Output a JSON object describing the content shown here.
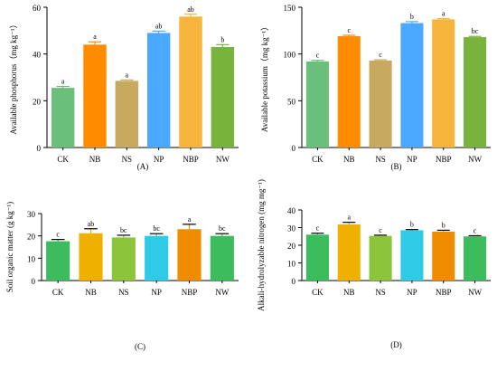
{
  "chart_data": [
    {
      "type": "bar",
      "panel_label": "(A)",
      "categories": [
        "CK",
        "NB",
        "NS",
        "NP",
        "NBP",
        "NW"
      ],
      "values": [
        25.5,
        44.0,
        28.5,
        49.0,
        56.0,
        43.0
      ],
      "errors": [
        0.6,
        1.2,
        0.4,
        0.8,
        1.0,
        1.0
      ],
      "letters": [
        "a",
        "a",
        "a",
        "ab",
        "ab",
        "b"
      ],
      "colors": [
        "#6abf7b",
        "#ff8c00",
        "#c8a960",
        "#4aa8ff",
        "#f5b43c",
        "#78b43c"
      ],
      "ylabel": "Available phosphorus（mg kg⁻¹）",
      "ylim": [
        0,
        60
      ],
      "yticks": [
        0,
        20,
        40,
        60
      ]
    },
    {
      "type": "bar",
      "panel_label": "(B)",
      "categories": [
        "CK",
        "NB",
        "NS",
        "NP",
        "NBP",
        "NW"
      ],
      "values": [
        92,
        119,
        93,
        133,
        137,
        118
      ],
      "errors": [
        1.2,
        1.0,
        0.8,
        1.6,
        0.8,
        0.8
      ],
      "letters": [
        "c",
        "c",
        "c",
        "b",
        "a",
        "bc"
      ],
      "colors": [
        "#6abf7b",
        "#ff8c00",
        "#c8a960",
        "#4aa8ff",
        "#f5b43c",
        "#78b43c"
      ],
      "ylabel": "Available potassium（mg kg⁻¹）",
      "ylim": [
        0,
        150
      ],
      "yticks": [
        0,
        50,
        100,
        150
      ]
    },
    {
      "type": "bar",
      "panel_label": "(C)",
      "categories": [
        "CK",
        "NB",
        "NS",
        "NP",
        "NBP",
        "NW"
      ],
      "values": [
        17.6,
        21.2,
        19.3,
        20.0,
        23.0,
        20.0
      ],
      "errors": [
        0.8,
        2.0,
        1.0,
        1.0,
        2.2,
        1.0
      ],
      "letters": [
        "c",
        "ab",
        "bc",
        "bc",
        "a",
        "bc"
      ],
      "colors": [
        "#3cbc5c",
        "#f0b000",
        "#8cc43c",
        "#2ecae6",
        "#f08c00",
        "#3cbc5c"
      ],
      "ylabel": "Soil organic matter (g kg⁻¹)",
      "ylim": [
        0,
        30
      ],
      "yticks": [
        0,
        10,
        20,
        30
      ]
    },
    {
      "type": "bar",
      "panel_label": "(D)",
      "categories": [
        "CK",
        "NB",
        "NS",
        "NP",
        "NBP",
        "NW"
      ],
      "values": [
        26.0,
        31.8,
        25.3,
        28.5,
        27.7,
        25.0
      ],
      "errors": [
        0.8,
        1.2,
        0.4,
        0.4,
        0.8,
        0.4
      ],
      "letters": [
        "c",
        "a",
        "c",
        "b",
        "b",
        "c"
      ],
      "colors": [
        "#3cbc5c",
        "#f0b000",
        "#8cc43c",
        "#2ecae6",
        "#f08c00",
        "#3cbc5c"
      ],
      "ylabel": "Alkali-hydrolyzable nitrogen (mg mg⁻¹)",
      "ylim": [
        0,
        40
      ],
      "yticks": [
        0,
        10,
        20,
        30,
        40
      ]
    }
  ]
}
